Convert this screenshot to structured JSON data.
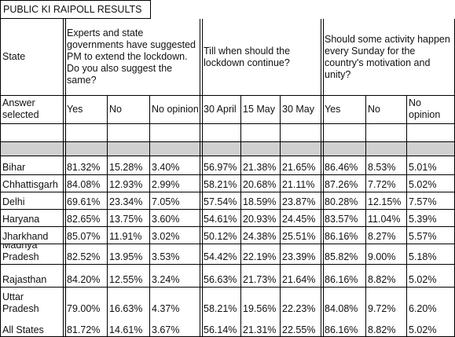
{
  "title": "PUBLIC KI RAIPOLL RESULTS",
  "headers": {
    "state": "State",
    "q1": "Experts and state governments have suggested PM to extend the lockdown. Do you also suggest the same?",
    "q2": "Till when should the lockdown continue?",
    "q3": "Should some activity happen every Sunday for the country's motivation and unity?"
  },
  "answer_row": {
    "label": "Answer selected",
    "options": [
      "Yes",
      "No",
      "No opinion",
      "30 April",
      "15 May",
      "30 May",
      "Yes",
      "No",
      "No opinion"
    ]
  },
  "rows": [
    {
      "state": "Bihar",
      "values": [
        "81.32%",
        "15.28%",
        "3.40%",
        "56.97%",
        "21.38%",
        "21.65%",
        "86.46%",
        "8.53%",
        "5.01%"
      ]
    },
    {
      "state": "Chhattisgarh",
      "values": [
        "84.08%",
        "12.93%",
        "2.99%",
        "58.21%",
        "20.68%",
        "21.11%",
        "87.26%",
        "7.72%",
        "5.02%"
      ]
    },
    {
      "state": "Delhi",
      "values": [
        "69.61%",
        "23.34%",
        "7.05%",
        "57.54%",
        "18.59%",
        "23.87%",
        "80.28%",
        "12.15%",
        "7.57%"
      ]
    },
    {
      "state": "Haryana",
      "values": [
        "82.65%",
        "13.75%",
        "3.60%",
        "54.61%",
        "20.93%",
        "24.45%",
        "83.57%",
        "11.04%",
        "5.39%"
      ]
    },
    {
      "state": "Jharkhand",
      "values": [
        "85.07%",
        "11.91%",
        "3.02%",
        "50.12%",
        "24.38%",
        "25.51%",
        "86.16%",
        "8.27%",
        "5.57%"
      ]
    },
    {
      "state": "Madhya Pradesh",
      "values": [
        "82.52%",
        "13.95%",
        "3.53%",
        "54.42%",
        "22.19%",
        "23.39%",
        "85.82%",
        "9.00%",
        "5.18%"
      ]
    },
    {
      "state": "Rajasthan",
      "values": [
        "84.20%",
        "12.55%",
        "3.24%",
        "56.63%",
        "21.73%",
        "21.64%",
        "86.16%",
        "8.82%",
        "5.02%"
      ]
    },
    {
      "state": "Uttar Pradesh",
      "values": [
        "79.00%",
        "16.63%",
        "4.37%",
        "58.21%",
        "19.56%",
        "22.23%",
        "84.08%",
        "9.72%",
        "6.20%"
      ]
    },
    {
      "state": "All States",
      "values": [
        "81.72%",
        "14.61%",
        "3.67%",
        "56.14%",
        "21.31%",
        "22.55%",
        "86.16%",
        "8.82%",
        "5.02%"
      ]
    }
  ]
}
